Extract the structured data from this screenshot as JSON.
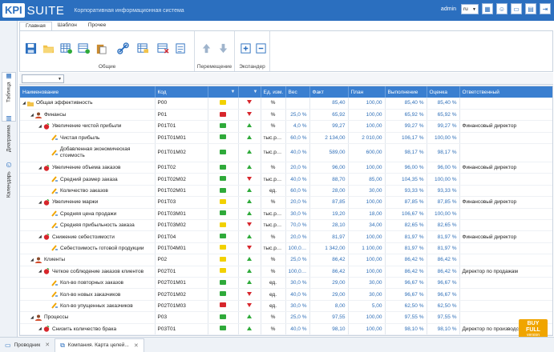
{
  "header": {
    "logo_kpi": "KPI",
    "logo_suite": "SUITE",
    "subtitle": "Корпоративная информационная система",
    "username": "admin",
    "language": "ru",
    "icons": [
      "grid-icon",
      "user-icon",
      "window-icon",
      "calendar-icon",
      "exit-icon"
    ]
  },
  "left_tabs": [
    {
      "label": "Таблица",
      "icon": "table-icon",
      "active": true
    },
    {
      "label": "Диаграмма",
      "icon": "chart-icon",
      "active": false
    },
    {
      "label": "Календарь",
      "icon": "calendar-icon",
      "active": false
    }
  ],
  "ribbon": {
    "tabs": [
      "Главная",
      "Шаблон",
      "Прочее"
    ],
    "groups": [
      {
        "label": "Общие",
        "buttons": [
          "save-icon",
          "open-folder-icon",
          "add-table-icon",
          "add-row-icon",
          "paste-icon",
          "link-icon",
          "edit-table-icon",
          "delete-table-icon",
          "export-icon"
        ]
      },
      {
        "label": "Перемещение",
        "buttons": [
          "move-up-icon",
          "move-down-icon"
        ]
      },
      {
        "label": "Экспандер",
        "buttons": [
          "expand-icon",
          "collapse-icon"
        ]
      }
    ]
  },
  "grid": {
    "columns": [
      "Наименование",
      "Код",
      "",
      "",
      "Ед. изм.",
      "Вес",
      "Факт",
      "План",
      "Выполнение",
      "Оценка",
      "Ответственный"
    ],
    "colors": {
      "green": "#2faa3a",
      "yellow": "#f2d100",
      "red": "#d7262c",
      "orange": "#f08c00"
    },
    "rows": [
      {
        "level": 0,
        "expand": true,
        "icon": "folder",
        "name": "Общая эффективность",
        "code": "P00",
        "status": "yellow",
        "trend": "down",
        "unit": "%",
        "weight": "",
        "fact": "85,40",
        "plan": "100,00",
        "exec": "85,40 %",
        "score": "85,40 %",
        "owner": ""
      },
      {
        "level": 1,
        "expand": true,
        "icon": "person",
        "name": "Финансы",
        "code": "P01",
        "status": "red",
        "trend": "down",
        "unit": "%",
        "weight": "25,0 %",
        "fact": "65,92",
        "plan": "100,00",
        "exec": "65,92 %",
        "score": "65,92 %",
        "owner": ""
      },
      {
        "level": 2,
        "expand": true,
        "icon": "goal",
        "name": "Увеличение чистой прибыли",
        "code": "P01T01",
        "status": "green",
        "trend": "up",
        "unit": "%",
        "weight": "4,0 %",
        "fact": "99,27",
        "plan": "100,00",
        "exec": "99,27 %",
        "score": "99,27 %",
        "owner": "Финансовый директор"
      },
      {
        "level": 3,
        "expand": false,
        "icon": "kpi",
        "name": "Чистая прибыль",
        "code": "P01T01M01",
        "status": "green",
        "trend": "up",
        "unit": "тыс.руб.",
        "weight": "60,0 %",
        "fact": "2 134,00",
        "plan": "2 010,00",
        "exec": "106,17 %",
        "score": "100,00 %",
        "owner": ""
      },
      {
        "level": 3,
        "expand": false,
        "icon": "kpi",
        "name": "Добавленная экономическая стоимость",
        "code": "P01T01M02",
        "status": "green",
        "trend": "up",
        "unit": "тыс.руб.",
        "weight": "40,0 %",
        "fact": "589,00",
        "plan": "600,00",
        "exec": "98,17 %",
        "score": "98,17 %",
        "owner": "",
        "tall": true
      },
      {
        "level": 2,
        "expand": true,
        "icon": "goal",
        "name": "Увеличение объема заказов",
        "code": "P01T02",
        "status": "green",
        "trend": "up",
        "unit": "%",
        "weight": "20,0 %",
        "fact": "96,00",
        "plan": "100,00",
        "exec": "96,00 %",
        "score": "96,00 %",
        "owner": "Финансовый директор"
      },
      {
        "level": 3,
        "expand": false,
        "icon": "kpi",
        "name": "Средний размер заказа",
        "code": "P01T02M02",
        "status": "green",
        "trend": "down",
        "unit": "тыс.руб.",
        "weight": "40,0 %",
        "fact": "88,70",
        "plan": "85,00",
        "exec": "104,35 %",
        "score": "100,00 %",
        "owner": ""
      },
      {
        "level": 3,
        "expand": false,
        "icon": "kpi",
        "name": "Количество заказов",
        "code": "P01T02M01",
        "status": "green",
        "trend": "up",
        "unit": "ед.",
        "weight": "60,0 %",
        "fact": "28,00",
        "plan": "30,00",
        "exec": "93,33 %",
        "score": "93,33 %",
        "owner": ""
      },
      {
        "level": 2,
        "expand": true,
        "icon": "goal",
        "name": "Увеличение маржи",
        "code": "P01T03",
        "status": "yellow",
        "trend": "up",
        "unit": "%",
        "weight": "20,0 %",
        "fact": "87,85",
        "plan": "100,00",
        "exec": "87,85 %",
        "score": "87,85 %",
        "owner": "Финансовый директор"
      },
      {
        "level": 3,
        "expand": false,
        "icon": "kpi",
        "name": "Средняя цена продажи",
        "code": "P01T03M01",
        "status": "green",
        "trend": "up",
        "unit": "тыс.руб.",
        "weight": "30,0 %",
        "fact": "19,20",
        "plan": "18,00",
        "exec": "106,67 %",
        "score": "100,00 %",
        "owner": ""
      },
      {
        "level": 3,
        "expand": false,
        "icon": "kpi",
        "name": "Средняя прибыльность заказа",
        "code": "P01T03M02",
        "status": "yellow",
        "trend": "down",
        "unit": "тыс.руб.",
        "weight": "70,0 %",
        "fact": "28,10",
        "plan": "34,00",
        "exec": "82,65 %",
        "score": "82,65 %",
        "owner": ""
      },
      {
        "level": 2,
        "expand": true,
        "icon": "goal",
        "name": "Снижение себестоимости",
        "code": "P01T04",
        "status": "green",
        "trend": "up",
        "unit": "%",
        "weight": "20,0 %",
        "fact": "81,97",
        "plan": "100,00",
        "exec": "81,97 %",
        "score": "81,97 %",
        "owner": "Финансовый директор"
      },
      {
        "level": 3,
        "expand": false,
        "icon": "kpi",
        "name": "Себестоимость готовой продукции",
        "code": "P01T04M01",
        "status": "yellow",
        "trend": "down",
        "unit": "тыс.руб.",
        "weight": "100,0 %",
        "fact": "1 342,00",
        "plan": "1 100,00",
        "exec": "81,97 %",
        "score": "81,97 %",
        "owner": ""
      },
      {
        "level": 1,
        "expand": true,
        "icon": "person",
        "name": "Клиенты",
        "code": "P02",
        "status": "yellow",
        "trend": "up",
        "unit": "%",
        "weight": "25,0 %",
        "fact": "86,42",
        "plan": "100,00",
        "exec": "86,42 %",
        "score": "86,42 %",
        "owner": ""
      },
      {
        "level": 2,
        "expand": true,
        "icon": "goal",
        "name": "Четкое соблюдение заказов клиентов",
        "code": "P02T01",
        "status": "yellow",
        "trend": "up",
        "unit": "%",
        "weight": "100,0 %",
        "fact": "86,42",
        "plan": "100,00",
        "exec": "86,42 %",
        "score": "86,42 %",
        "owner": "Директор по продажам"
      },
      {
        "level": 3,
        "expand": false,
        "icon": "kpi",
        "name": "Кол-во повторных заказов",
        "code": "P02T01M01",
        "status": "green",
        "trend": "up",
        "unit": "ед.",
        "weight": "30,0 %",
        "fact": "29,00",
        "plan": "30,00",
        "exec": "96,67 %",
        "score": "96,67 %",
        "owner": ""
      },
      {
        "level": 3,
        "expand": false,
        "icon": "kpi",
        "name": "Кол-во новых заказчиков",
        "code": "P02T01M02",
        "status": "green",
        "trend": "down",
        "unit": "ед.",
        "weight": "40,0 %",
        "fact": "29,00",
        "plan": "30,00",
        "exec": "96,67 %",
        "score": "96,67 %",
        "owner": ""
      },
      {
        "level": 3,
        "expand": false,
        "icon": "kpi",
        "name": "Кол-во упущенных заказчиков",
        "code": "P02T01M03",
        "status": "red",
        "trend": "down",
        "unit": "ед.",
        "weight": "30,0 %",
        "fact": "8,00",
        "plan": "5,00",
        "exec": "62,50 %",
        "score": "62,50 %",
        "owner": ""
      },
      {
        "level": 1,
        "expand": true,
        "icon": "person",
        "name": "Процессы",
        "code": "P03",
        "status": "green",
        "trend": "up",
        "unit": "%",
        "weight": "25,0 %",
        "fact": "97,55",
        "plan": "100,00",
        "exec": "97,55 %",
        "score": "97,55 %",
        "owner": ""
      },
      {
        "level": 2,
        "expand": true,
        "icon": "goal",
        "name": "Снизить количество брака",
        "code": "P03T01",
        "status": "green",
        "trend": "up",
        "unit": "%",
        "weight": "40,0 %",
        "fact": "98,10",
        "plan": "100,00",
        "exec": "98,10 %",
        "score": "98,10 %",
        "owner": "Директор по производству"
      }
    ]
  },
  "taskbar": {
    "tasks": [
      {
        "label": "Проводник",
        "icon": "monitor-icon",
        "active": false
      },
      {
        "label": "Компания. Карта целей...",
        "icon": "org-icon",
        "active": true
      }
    ]
  },
  "badge": {
    "line1": "BUY",
    "line2": "FULL",
    "line3": "version"
  }
}
